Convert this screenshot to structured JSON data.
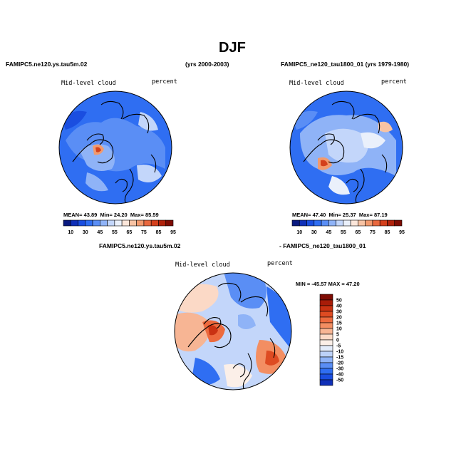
{
  "figure": {
    "title": "DJF",
    "panel_left": {
      "case_label": "FAMIPC5.ne120.ys.tau5m.02",
      "years_label": "(yrs 2000-2003)",
      "variable": "Mid-level cloud",
      "units": "percent",
      "stats": {
        "mean_label": "MEAN=",
        "mean": "43.89",
        "min_label": "Min=",
        "min": "24.20",
        "max_label": "Max=",
        "max": "85.59"
      }
    },
    "panel_right": {
      "case_label": "FAMIPC5_ne120_tau1800_01 (yrs 1979-1980)",
      "variable": "Mid-level cloud",
      "units": "percent",
      "stats": {
        "mean_label": "MEAN=",
        "mean": "47.40",
        "min_label": "Min=",
        "min": "25.37",
        "max_label": "Max=",
        "max": "87.19"
      }
    },
    "panel_diff": {
      "case_a": "FAMIPC5.ne120.ys.tau5m.02",
      "case_b": "- FAMIPC5_ne120_tau1800_01",
      "variable": "Mid-level cloud",
      "units": "percent",
      "minmax_label": "MIN = -45.57  MAX =  47.20"
    },
    "colorbar_main": {
      "labels": [
        "10",
        "30",
        "45",
        "55",
        "65",
        "75",
        "85",
        "95"
      ],
      "colors": [
        "#0a1a80",
        "#1030b8",
        "#1a4ee0",
        "#2f6ef2",
        "#5a8ef5",
        "#8fb3f7",
        "#c3d6fa",
        "#eaf0fb",
        "#fbe6da",
        "#f7c3a4",
        "#f29a6e",
        "#e8683e",
        "#d4401c",
        "#b0220c",
        "#7e0c04"
      ]
    },
    "colorbar_diff": {
      "labels": [
        "50",
        "40",
        "30",
        "20",
        "15",
        "10",
        "5",
        "0",
        "-5",
        "-10",
        "-15",
        "-20",
        "-30",
        "-40",
        "-50"
      ],
      "colors": [
        "#7e0c04",
        "#a81c08",
        "#c93212",
        "#de4b22",
        "#ec6a3e",
        "#f38e62",
        "#f7b594",
        "#fbd9c6",
        "#fbefe8",
        "#e3ecfb",
        "#bcd1f8",
        "#8fb3f7",
        "#5a8ef5",
        "#2f6ef2",
        "#1a4ee0",
        "#1030b8"
      ]
    }
  }
}
